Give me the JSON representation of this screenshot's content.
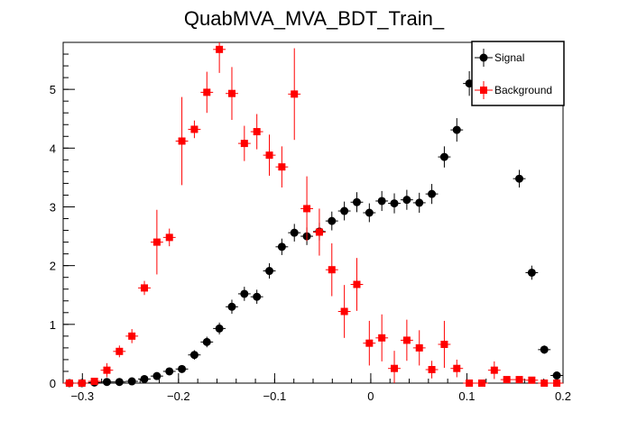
{
  "chart_data": {
    "type": "scatter",
    "title": "QuabMVA_MVA_BDT_Train_",
    "xlabel": "",
    "ylabel": "",
    "xlim": [
      -0.32,
      0.2
    ],
    "ylim": [
      0,
      5.8
    ],
    "xticks": [
      -0.3,
      -0.2,
      -0.1,
      0,
      0.1,
      0.2
    ],
    "xtick_labels": [
      "−0.3",
      "−0.2",
      "−0.1",
      "0",
      "0.1",
      "0.2"
    ],
    "yticks": [
      0,
      1,
      2,
      3,
      4,
      5
    ],
    "ytick_labels": [
      "0",
      "1",
      "2",
      "3",
      "4",
      "5"
    ],
    "bin_half_width": 0.0065,
    "grid": false,
    "legend_position": "top-right",
    "series": [
      {
        "name": "Signal",
        "marker": "circle",
        "color": "#000000",
        "x": [
          -0.3135,
          -0.3005,
          -0.2875,
          -0.2745,
          -0.2615,
          -0.2485,
          -0.2355,
          -0.2225,
          -0.2095,
          -0.1965,
          -0.1835,
          -0.1705,
          -0.1575,
          -0.1445,
          -0.1315,
          -0.1185,
          -0.1055,
          -0.0925,
          -0.0795,
          -0.0665,
          -0.0535,
          -0.0405,
          -0.0275,
          -0.0145,
          -0.0015,
          0.0115,
          0.0245,
          0.0375,
          0.0505,
          0.0635,
          0.0765,
          0.0895,
          0.1025,
          0.1155,
          0.1285,
          0.1415,
          0.1545,
          0.1675,
          0.1805,
          0.1935
        ],
        "y": [
          0,
          0,
          0.01,
          0.02,
          0.02,
          0.03,
          0.07,
          0.12,
          0.2,
          0.24,
          0.48,
          0.7,
          0.93,
          1.3,
          1.52,
          1.47,
          1.91,
          2.32,
          2.56,
          2.5,
          2.58,
          2.76,
          2.93,
          3.08,
          2.9,
          3.1,
          3.06,
          3.12,
          3.07,
          3.22,
          3.85,
          4.31,
          5.1,
          5.6,
          5.7,
          5.2,
          3.48,
          1.88,
          0.57,
          0.13
        ],
        "err": [
          0,
          0,
          0.02,
          0.02,
          0.02,
          0.03,
          0.04,
          0.05,
          0.06,
          0.06,
          0.08,
          0.09,
          0.1,
          0.12,
          0.12,
          0.12,
          0.13,
          0.14,
          0.15,
          0.15,
          0.15,
          0.16,
          0.16,
          0.17,
          0.16,
          0.17,
          0.17,
          0.17,
          0.17,
          0.17,
          0.18,
          0.2,
          0.21,
          0.22,
          0.22,
          0.22,
          0.15,
          0.12,
          0.07,
          0.04
        ]
      },
      {
        "name": "Background",
        "marker": "square",
        "color": "#ff0000",
        "x": [
          -0.3135,
          -0.3005,
          -0.2875,
          -0.2745,
          -0.2615,
          -0.2485,
          -0.2355,
          -0.2225,
          -0.2095,
          -0.1965,
          -0.1835,
          -0.1705,
          -0.1575,
          -0.1445,
          -0.1315,
          -0.1185,
          -0.1055,
          -0.0925,
          -0.0795,
          -0.0665,
          -0.0535,
          -0.0405,
          -0.0275,
          -0.0145,
          -0.0015,
          0.0115,
          0.0245,
          0.0375,
          0.0505,
          0.0635,
          0.0765,
          0.0895,
          0.1025,
          0.1155,
          0.1285,
          0.1415,
          0.1545,
          0.1675,
          0.1805,
          0.1935
        ],
        "y": [
          0,
          0,
          0.03,
          0.22,
          0.54,
          0.8,
          1.62,
          2.4,
          2.48,
          4.12,
          4.32,
          4.95,
          5.68,
          4.93,
          4.08,
          4.28,
          3.88,
          3.68,
          4.92,
          2.97,
          2.57,
          1.93,
          1.22,
          1.68,
          0.68,
          0.77,
          0.25,
          0.73,
          0.6,
          0.23,
          0.66,
          0.25,
          0,
          0,
          0.22,
          0.06,
          0.06,
          0.05,
          0,
          0
        ],
        "err": [
          0,
          0,
          0.05,
          0.12,
          0.1,
          0.12,
          0.12,
          0.55,
          0.15,
          0.75,
          0.15,
          0.35,
          0.4,
          0.45,
          0.3,
          0.3,
          0.35,
          0.35,
          0.78,
          0.55,
          0.4,
          0.45,
          0.45,
          0.45,
          0.38,
          0.4,
          0.3,
          0.35,
          0.3,
          0.15,
          0.4,
          0.15,
          0,
          0,
          0.15,
          0.05,
          0.05,
          0.04,
          0,
          0
        ]
      }
    ]
  }
}
